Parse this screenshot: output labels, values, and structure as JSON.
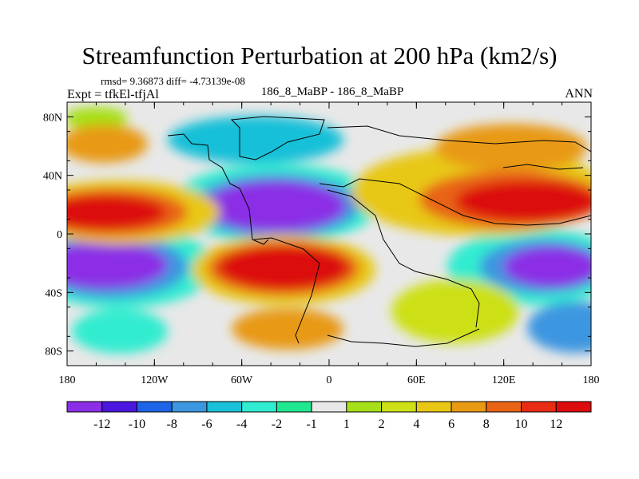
{
  "header": {
    "title": "Streamfunction Perturbation at 200 hPa (km2/s)",
    "stats": "rmsd= 9.36873 diff= -4.73139e-08",
    "expt": "Expt = tfkEl-tfjAl",
    "cases": "186_8_MaBP - 186_8_MaBP",
    "season": "ANN"
  },
  "map": {
    "x_ticks": [
      "180",
      "120W",
      "60W",
      "0",
      "60E",
      "120E",
      "180"
    ],
    "y_ticks": [
      "80N",
      "40N",
      "0",
      "40S",
      "80S"
    ]
  },
  "colorbar": {
    "labels": [
      "-12",
      "-10",
      "-8",
      "-6",
      "-4",
      "-2",
      "-1",
      "1",
      "2",
      "4",
      "6",
      "8",
      "10",
      "12"
    ],
    "colors": [
      "#8b2ee6",
      "#4b16e0",
      "#1e64e6",
      "#3c96e0",
      "#18c0d8",
      "#30ecd0",
      "#20e890",
      "#e8e8e8",
      "#a6e018",
      "#cde018",
      "#e8c814",
      "#e89a14",
      "#e86414",
      "#e82c14",
      "#dc0c0c"
    ]
  }
}
